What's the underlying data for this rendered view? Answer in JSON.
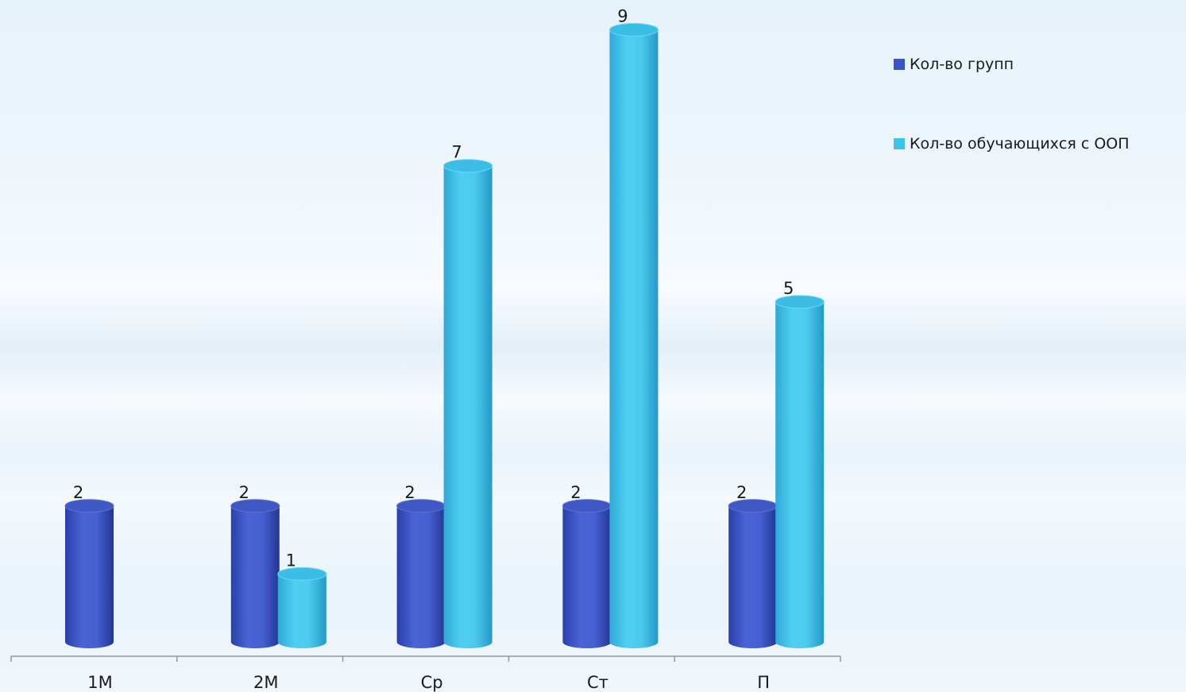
{
  "chart_data": {
    "type": "bar",
    "categories": [
      "1М",
      "2М",
      "Ср",
      "Ст",
      "П"
    ],
    "series": [
      {
        "name": "Кол-во групп",
        "values": [
          2,
          2,
          2,
          2,
          2
        ],
        "color": "#3b55c6"
      },
      {
        "name": "Кол-во обучающихся с ООП",
        "values": [
          null,
          1,
          7,
          9,
          5
        ],
        "color": "#3fc1ea"
      }
    ],
    "ylim": [
      0,
      9
    ],
    "grid": false,
    "legend_position": "right",
    "bar_shape": "cylinder",
    "data_labels": true
  }
}
